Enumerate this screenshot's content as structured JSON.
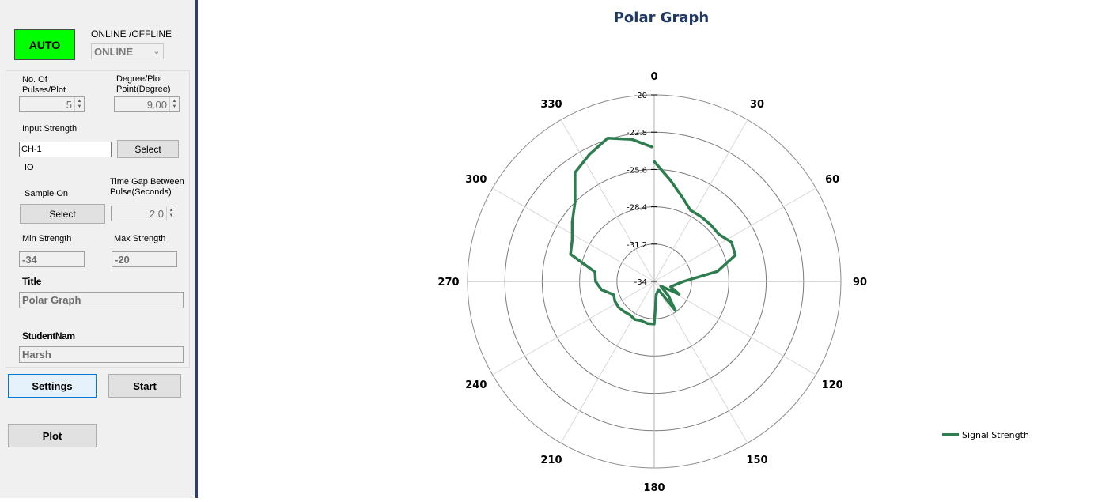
{
  "sidebar": {
    "auto_label": "AUTO",
    "mode_label": "ONLINE /OFFLINE",
    "mode_value": "ONLINE",
    "pulses_label_1": "No. Of",
    "pulses_label_2": "Pulses/Plot",
    "pulses_value": "5",
    "degree_label_1": "Degree/Plot",
    "degree_label_2": "Point(Degree)",
    "degree_value": "9.00",
    "input_strength_label": "Input Strength",
    "input_strength_value": "CH-1",
    "select_label": "Select",
    "io_label": "IO",
    "sample_on_label": "Sample On",
    "sample_select_label": "Select",
    "time_gap_label_1": "Time Gap Between",
    "time_gap_label_2": "Pulse(Seconds)",
    "time_gap_value": "2.0",
    "min_strength_label": "Min Strength",
    "min_strength_value": "-34",
    "max_strength_label": "Max Strength",
    "max_strength_value": "-20",
    "title_label": "Title",
    "title_value": "Polar Graph",
    "student_label": "StudentNam",
    "student_value": "Harsh",
    "settings_label": "Settings",
    "start_label": "Start",
    "plot_label": "Plot"
  },
  "colors": {
    "auto_green": "#00ff00",
    "series": "#2e7d4f",
    "title": "#1f3864",
    "divider": "#2f3f73"
  },
  "chart_data": {
    "type": "line",
    "polar": true,
    "title": "Polar Graph",
    "angle_ticks": [
      "0",
      "30",
      "60",
      "90",
      "120",
      "150",
      "180",
      "210",
      "240",
      "270",
      "300",
      "330"
    ],
    "radial_ticks": [
      "-20",
      "-22.8",
      "-25.6",
      "-28.4",
      "-31.2",
      "-34"
    ],
    "rlim": [
      -34,
      -20
    ],
    "legend_position": "right",
    "series": [
      {
        "name": "Signal Strength",
        "points": [
          [
            0,
            -25.0
          ],
          [
            9,
            -26.3
          ],
          [
            18,
            -27.3
          ],
          [
            27,
            -28.0
          ],
          [
            36,
            -28.0
          ],
          [
            45,
            -28.0
          ],
          [
            54,
            -28.0
          ],
          [
            63,
            -27.5
          ],
          [
            72,
            -27.6
          ],
          [
            81,
            -29.2
          ],
          [
            90,
            -31.8
          ],
          [
            99,
            -32.4
          ],
          [
            108,
            -32.7
          ],
          [
            117,
            -31.9
          ],
          [
            126,
            -33.4
          ],
          [
            135,
            -32.5
          ],
          [
            144,
            -31.3
          ],
          [
            153,
            -33.3
          ],
          [
            162,
            -33.2
          ],
          [
            171,
            -33.0
          ],
          [
            180,
            -30.8
          ],
          [
            189,
            -30.8
          ],
          [
            198,
            -30.9
          ],
          [
            207,
            -30.8
          ],
          [
            216,
            -30.9
          ],
          [
            225,
            -30.8
          ],
          [
            234,
            -30.7
          ],
          [
            243,
            -30.7
          ],
          [
            252,
            -30.8
          ],
          [
            261,
            -30.0
          ],
          [
            270,
            -29.6
          ],
          [
            279,
            -29.5
          ],
          [
            288,
            -27.4
          ],
          [
            297,
            -27.1
          ],
          [
            306,
            -26.4
          ],
          [
            315,
            -25.6
          ],
          [
            324,
            -23.9
          ],
          [
            333,
            -23.3
          ],
          [
            342,
            -22.7
          ],
          [
            351,
            -23.2
          ],
          [
            359,
            -23.9
          ]
        ]
      }
    ]
  }
}
